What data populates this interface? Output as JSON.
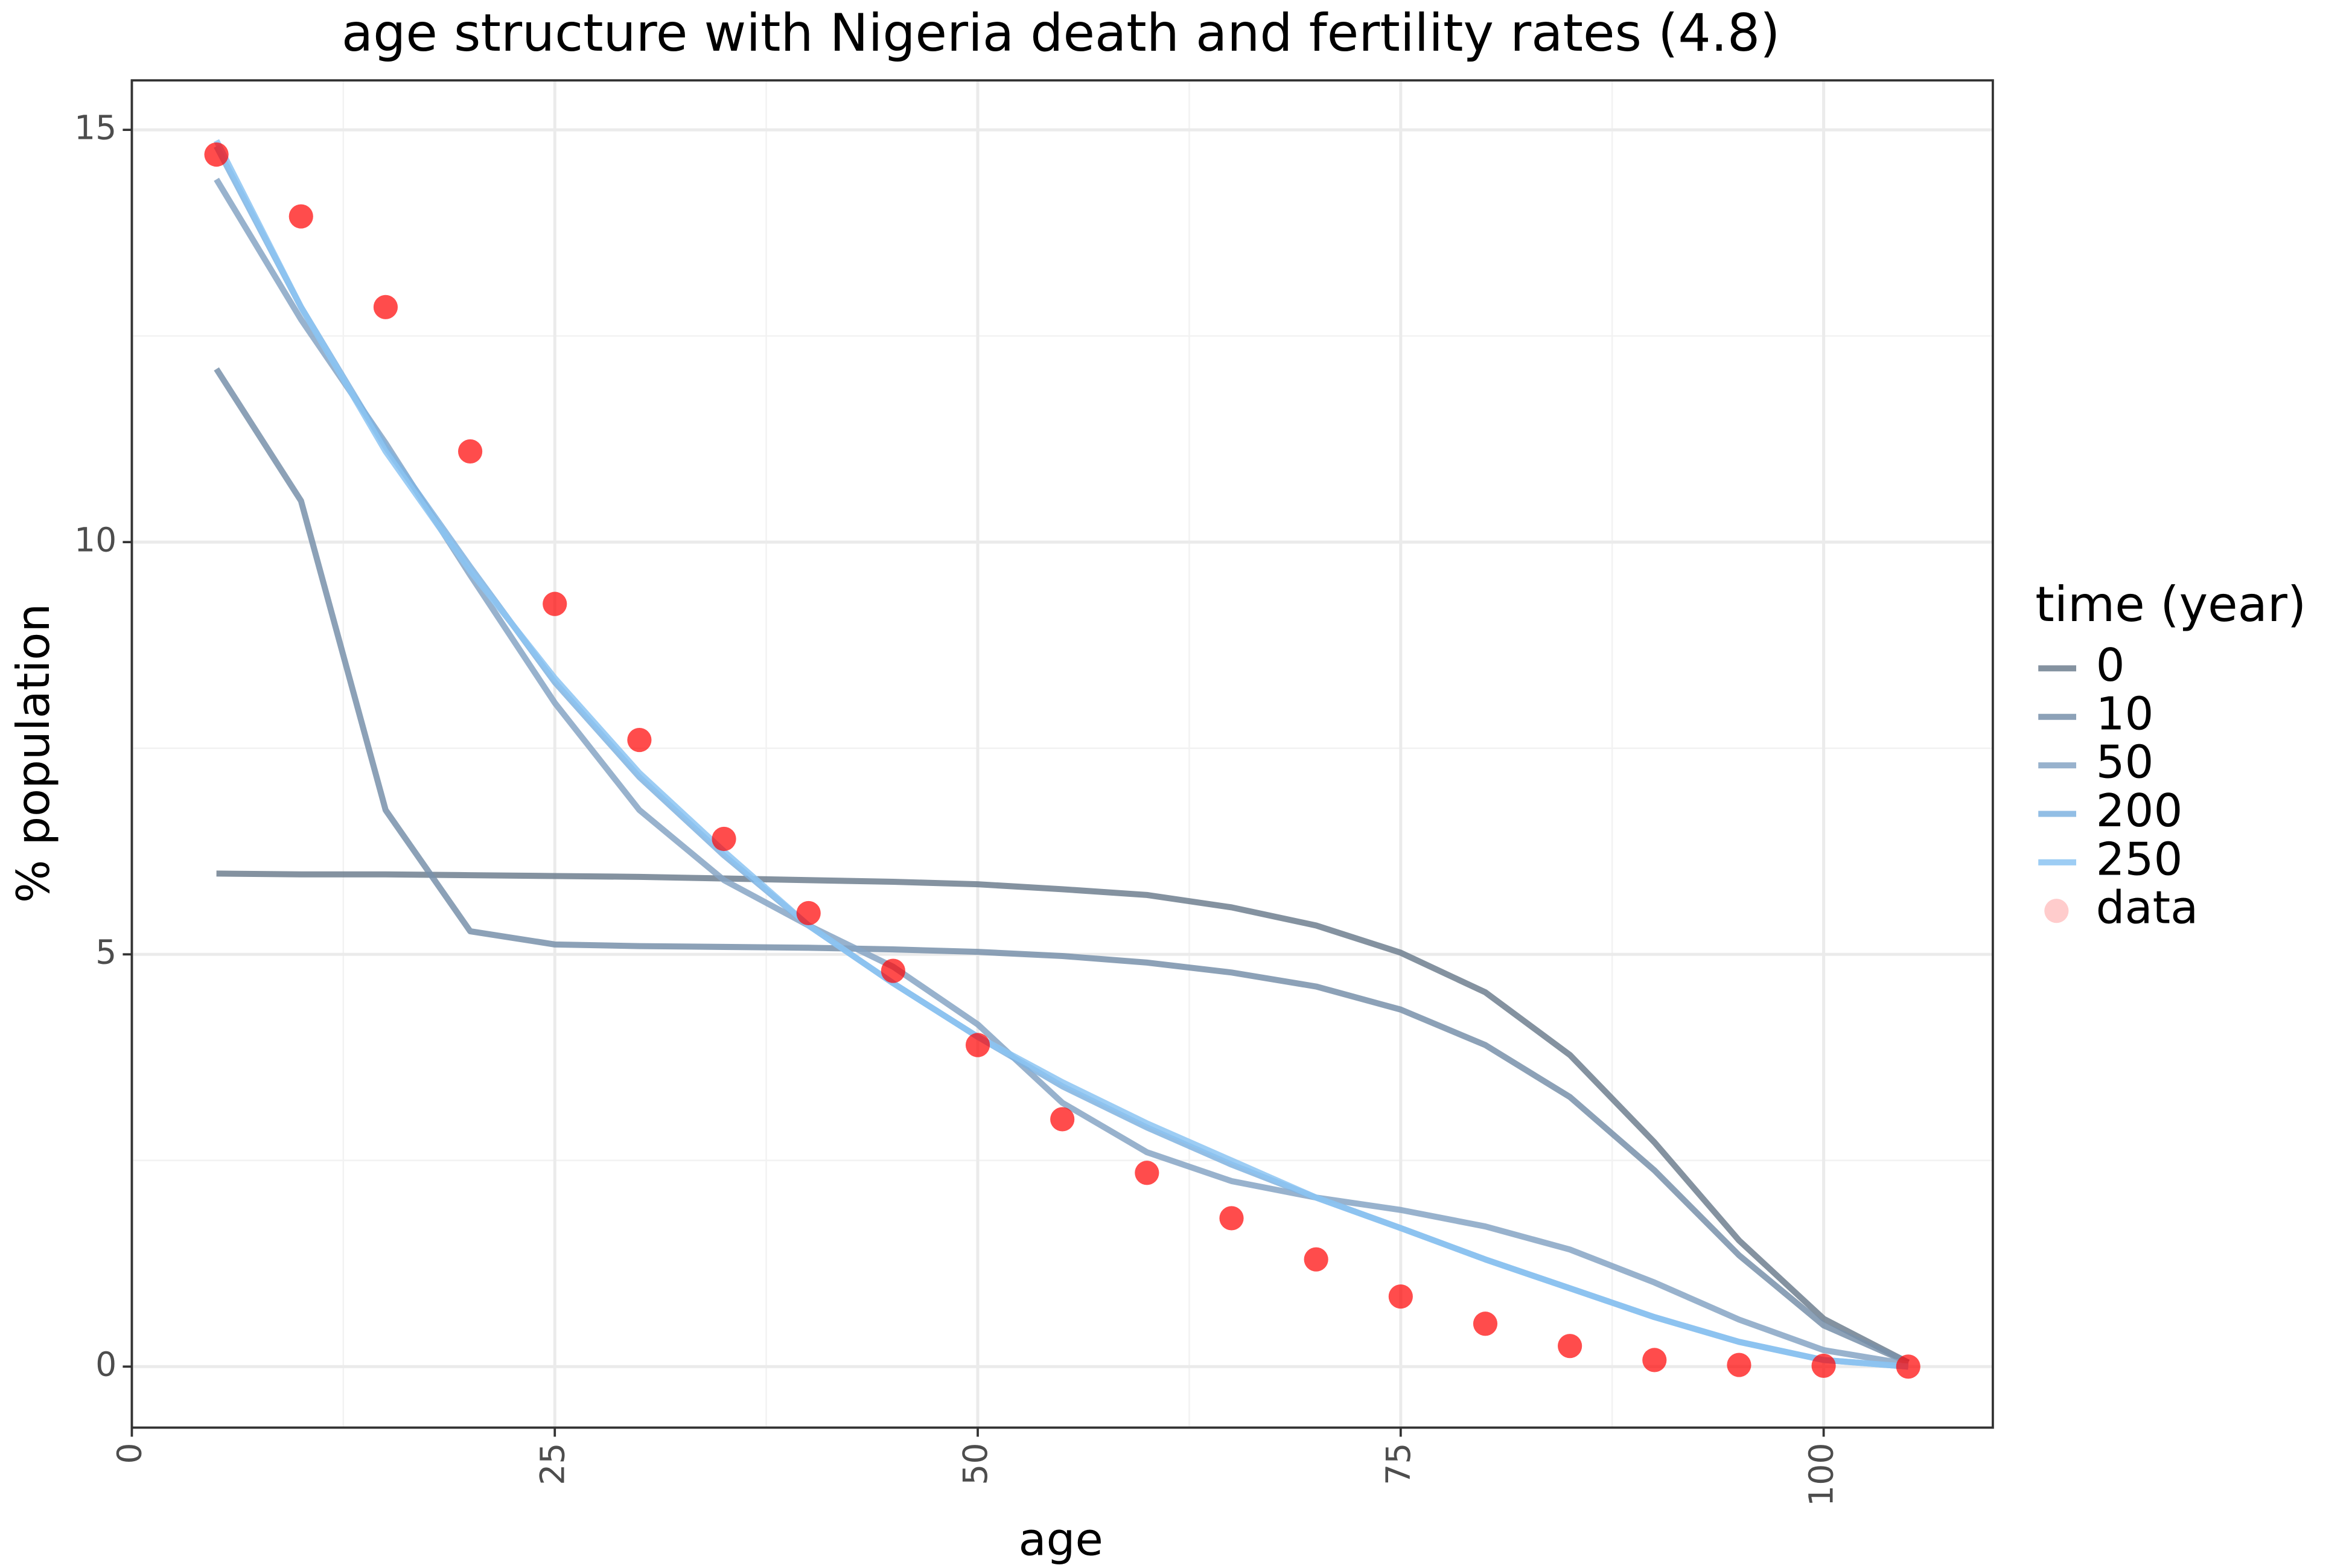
{
  "chart_data": {
    "type": "line",
    "title": "age structure with Nigeria death and fertility rates (4.8)",
    "x_label": "age",
    "y_label": "% population",
    "legend_title": "time (year)",
    "x": [
      5,
      10,
      15,
      20,
      25,
      30,
      35,
      40,
      45,
      50,
      55,
      60,
      65,
      70,
      75,
      80,
      85,
      90,
      95,
      100,
      105
    ],
    "series": [
      {
        "name": "0",
        "color": "#6f7f8f",
        "values": [
          5.98,
          5.97,
          5.97,
          5.96,
          5.95,
          5.94,
          5.92,
          5.9,
          5.88,
          5.85,
          5.79,
          5.72,
          5.57,
          5.35,
          5.02,
          4.54,
          3.78,
          2.72,
          1.53,
          0.58,
          0.05
        ]
      },
      {
        "name": "10",
        "color": "#7891aa",
        "values": [
          12.1,
          10.5,
          6.75,
          5.28,
          5.12,
          5.1,
          5.09,
          5.08,
          5.06,
          5.03,
          4.98,
          4.9,
          4.78,
          4.61,
          4.33,
          3.9,
          3.27,
          2.38,
          1.35,
          0.5,
          0.05
        ]
      },
      {
        "name": "50",
        "color": "#86a4c4",
        "values": [
          14.4,
          12.7,
          11.2,
          9.6,
          8.05,
          6.75,
          5.9,
          5.35,
          4.85,
          4.15,
          3.2,
          2.6,
          2.25,
          2.05,
          1.9,
          1.7,
          1.42,
          1.02,
          0.57,
          0.2,
          0.03
        ]
      },
      {
        "name": "200",
        "color": "#7fb3e0",
        "values": [
          14.8,
          12.85,
          11.15,
          9.7,
          8.3,
          7.15,
          6.2,
          5.35,
          4.65,
          4.0,
          3.4,
          2.9,
          2.45,
          2.05,
          1.68,
          1.3,
          0.95,
          0.6,
          0.3,
          0.08,
          0.0
        ]
      },
      {
        "name": "250",
        "color": "#8cc4f2",
        "values": [
          14.87,
          12.85,
          11.1,
          9.65,
          8.35,
          7.2,
          6.25,
          5.35,
          4.65,
          4.0,
          3.45,
          2.95,
          2.5,
          2.05,
          1.68,
          1.3,
          0.95,
          0.6,
          0.3,
          0.08,
          0.0
        ]
      }
    ],
    "points": {
      "name": "data",
      "color": "#ff0000",
      "values": [
        14.7,
        13.95,
        12.85,
        11.1,
        9.25,
        7.6,
        6.4,
        5.5,
        4.8,
        3.9,
        3.0,
        2.35,
        1.8,
        1.3,
        0.85,
        0.52,
        0.25,
        0.08,
        0.02,
        0.01,
        0.0
      ]
    },
    "xlim": [
      0,
      110
    ],
    "ylim": [
      -0.74,
      15.6
    ],
    "xticks": [
      0,
      25,
      50,
      75,
      100
    ],
    "yticks": [
      0,
      5,
      10,
      15
    ],
    "x_minor_ticks": [
      12.5,
      37.5,
      62.5,
      87.5
    ],
    "y_minor_ticks": [
      2.5,
      7.5,
      12.5
    ],
    "grid": true,
    "legend": "right"
  }
}
